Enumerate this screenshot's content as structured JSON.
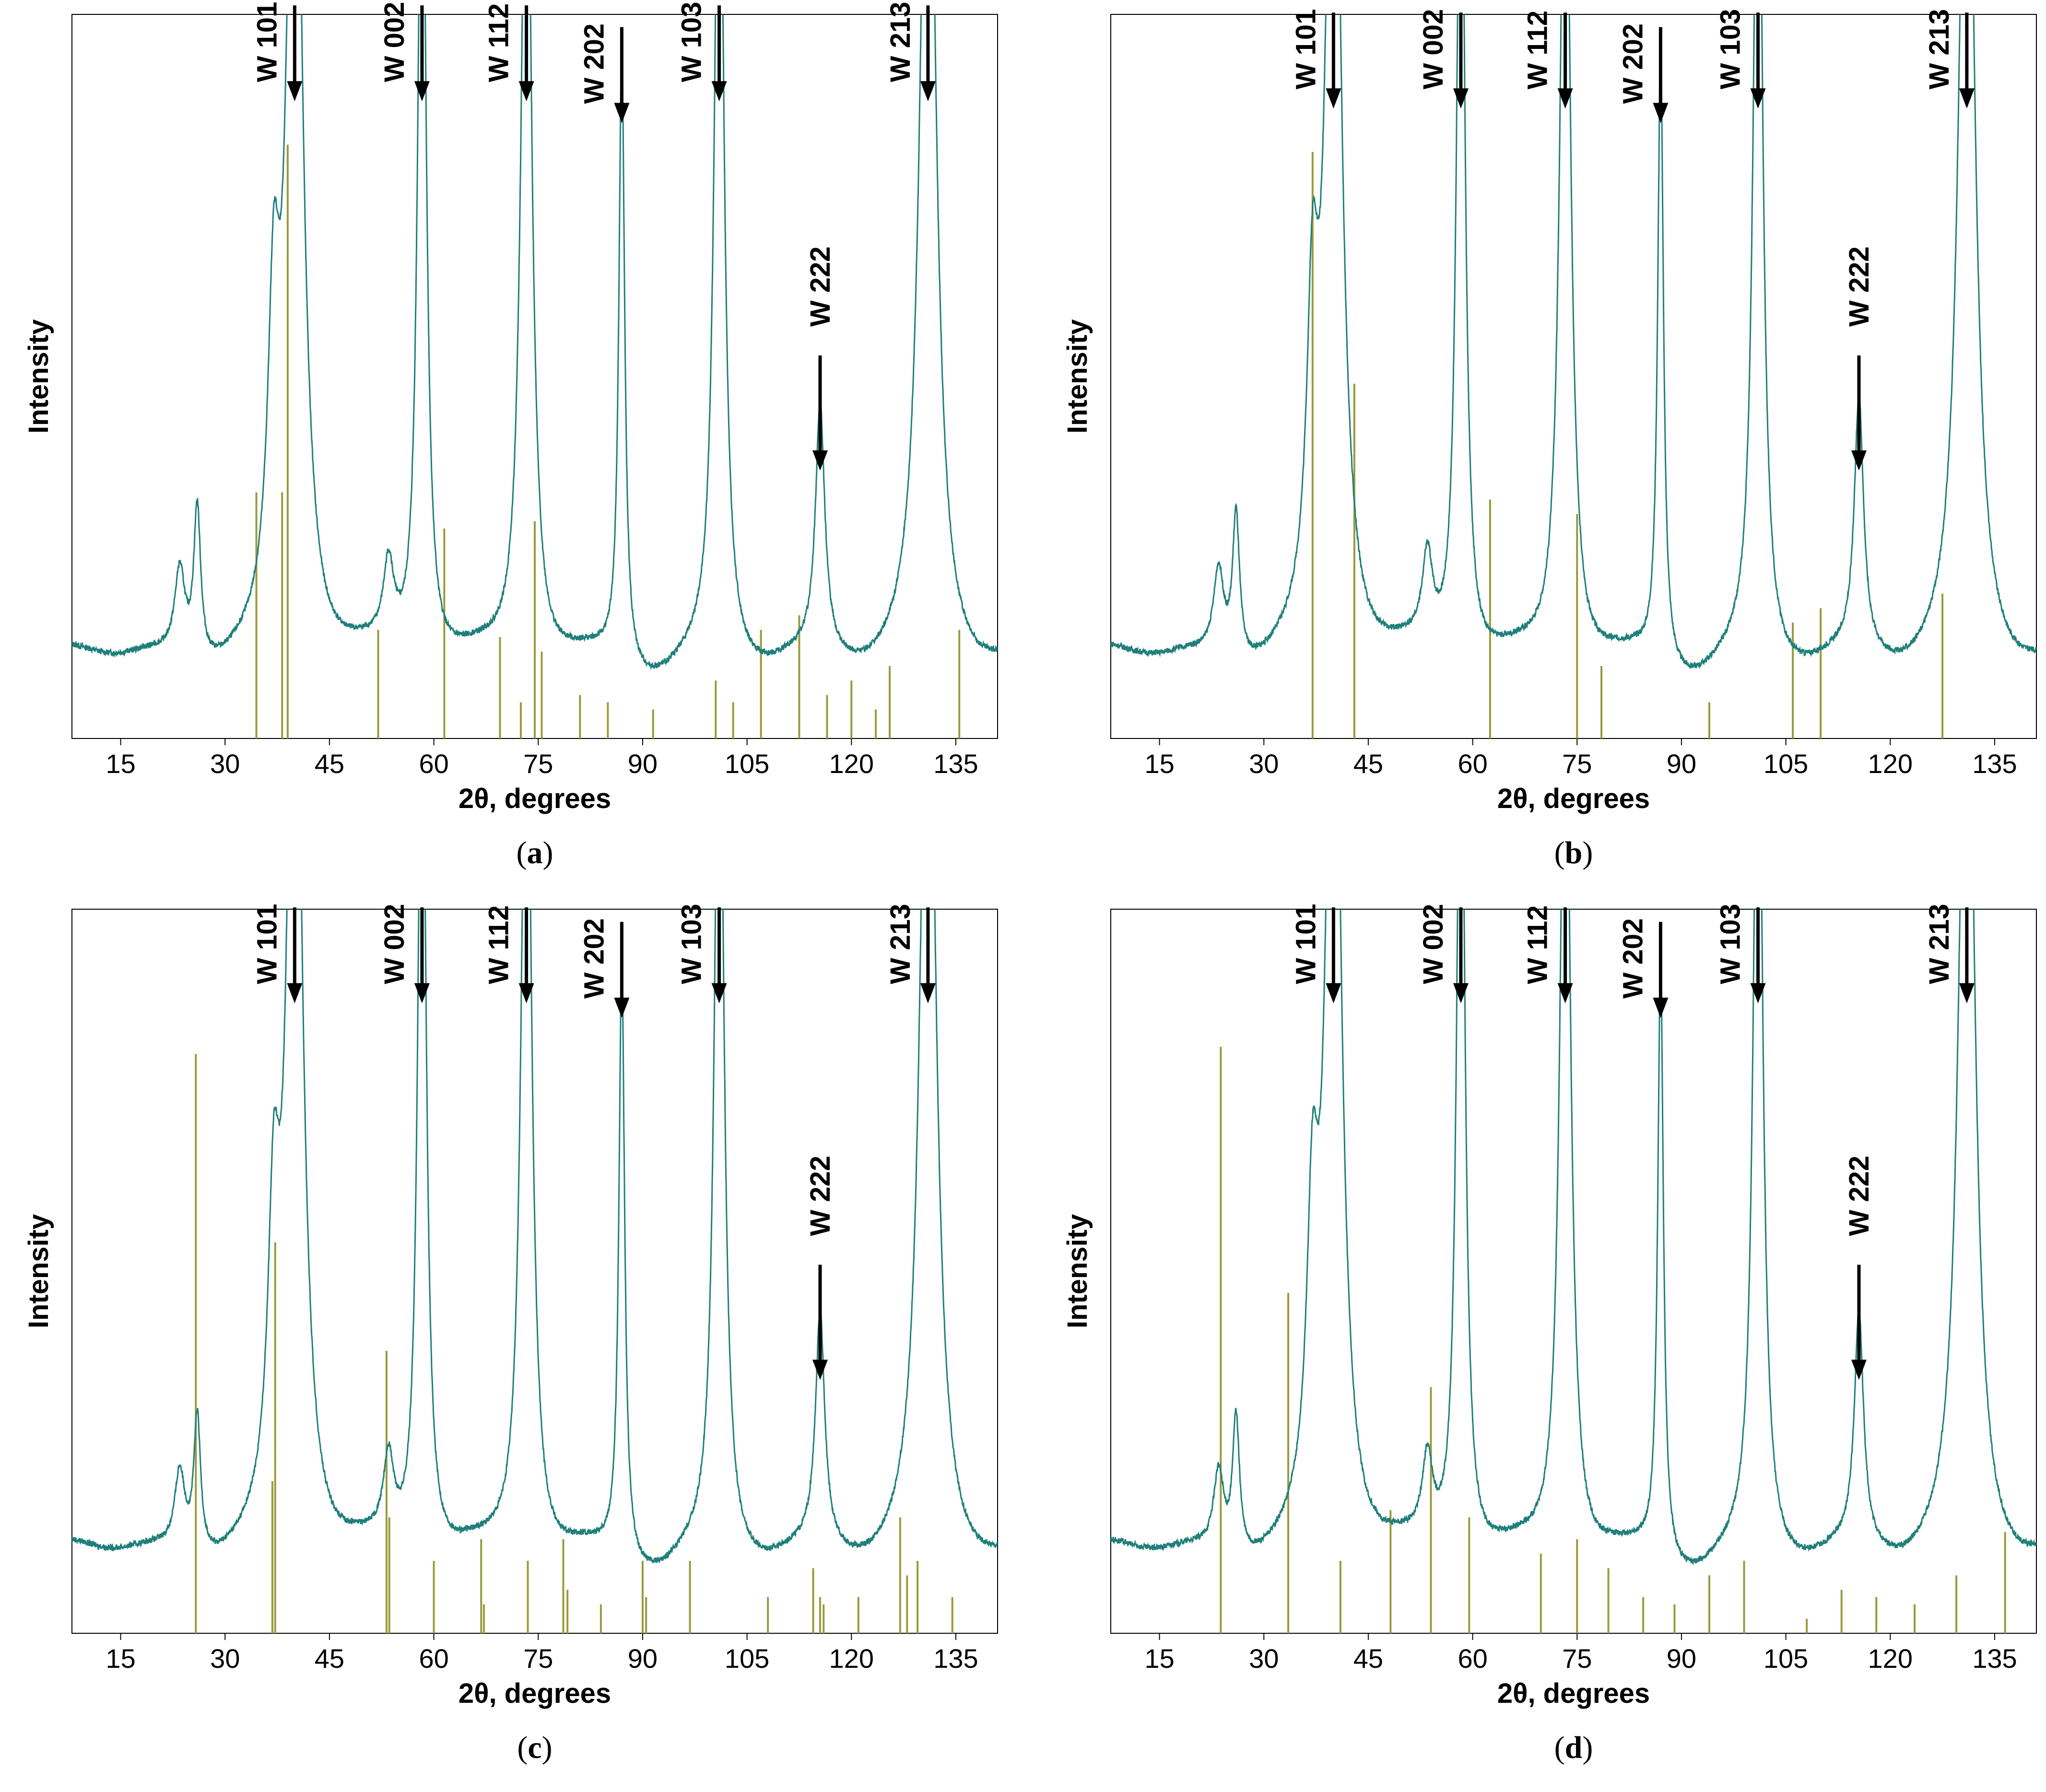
{
  "figure": {
    "axis_label_x": "2θ, degrees",
    "axis_label_y": "Intensity",
    "colors": {
      "pattern": "#1f7f7a",
      "reference": "#9a9a3a",
      "axis": "#000000",
      "arrow": "#000000"
    }
  },
  "chart_data": [
    {
      "panel": "a",
      "caption_letter": "a",
      "type": "line",
      "title": "",
      "xlabel": "2θ, degrees",
      "ylabel": "Intensity",
      "xlim": [
        8,
        141
      ],
      "ylim": [
        0,
        100
      ],
      "grid": false,
      "xticks": [
        15,
        30,
        45,
        60,
        75,
        90,
        105,
        120,
        135
      ],
      "tick_labels": [
        "15",
        "30",
        "45",
        "60",
        "75",
        "90",
        "105",
        "120",
        "135"
      ],
      "peaks": [
        {
          "pos": 23.5,
          "h": 12,
          "w": 0.9
        },
        {
          "pos": 26,
          "h": 21,
          "w": 0.6
        },
        {
          "pos": 37,
          "h": 40,
          "w": 1.0
        },
        {
          "pos": 40,
          "h": 140,
          "w": 1.3
        },
        {
          "pos": 53.5,
          "h": 11,
          "w": 0.9
        },
        {
          "pos": 58.3,
          "h": 130,
          "w": 0.7
        },
        {
          "pos": 73.3,
          "h": 130,
          "w": 0.9
        },
        {
          "pos": 87,
          "h": 85,
          "w": 0.5
        },
        {
          "pos": 101,
          "h": 130,
          "w": 0.8
        },
        {
          "pos": 115.5,
          "h": 34,
          "w": 0.8
        },
        {
          "pos": 131,
          "h": 140,
          "w": 1.3
        }
      ],
      "baseline": 10,
      "reference_lines": [
        [
          34.5,
          34
        ],
        [
          38.2,
          34
        ],
        [
          39,
          82
        ],
        [
          52,
          15
        ],
        [
          61.5,
          29
        ],
        [
          69.5,
          14
        ],
        [
          72.5,
          5
        ],
        [
          74.5,
          30
        ],
        [
          75.5,
          12
        ],
        [
          81,
          6
        ],
        [
          85,
          5
        ],
        [
          91.5,
          4
        ],
        [
          100.5,
          8
        ],
        [
          103,
          5
        ],
        [
          107,
          15
        ],
        [
          112.5,
          17
        ],
        [
          116.5,
          6
        ],
        [
          120,
          8
        ],
        [
          123.5,
          4
        ],
        [
          125.5,
          10
        ],
        [
          135.5,
          15
        ]
      ],
      "annotations": [
        {
          "label": "W 101",
          "pos": 40,
          "arrow_tip": 88,
          "style": "top"
        },
        {
          "label": "W 002",
          "pos": 58.3,
          "arrow_tip": 88,
          "style": "top"
        },
        {
          "label": "W 112",
          "pos": 73.3,
          "arrow_tip": 88,
          "style": "top"
        },
        {
          "label": "W 202",
          "pos": 87,
          "arrow_tip": 85,
          "style": "top"
        },
        {
          "label": "W 103",
          "pos": 101,
          "arrow_tip": 88,
          "style": "top"
        },
        {
          "label": "W 213",
          "pos": 131,
          "arrow_tip": 88,
          "style": "top"
        },
        {
          "label": "W 222",
          "pos": 115.5,
          "arrow_tip": 37,
          "style": "low"
        }
      ]
    },
    {
      "panel": "b",
      "caption_letter": "b",
      "type": "line",
      "title": "",
      "xlabel": "2θ, degrees",
      "ylabel": "Intensity",
      "xlim": [
        8,
        141
      ],
      "ylim": [
        0,
        100
      ],
      "grid": false,
      "xticks": [
        15,
        30,
        45,
        60,
        75,
        90,
        105,
        120,
        135
      ],
      "tick_labels": [
        "15",
        "30",
        "45",
        "60",
        "75",
        "90",
        "105",
        "120",
        "135"
      ],
      "peaks": [
        {
          "pos": 23.5,
          "h": 12,
          "w": 0.9
        },
        {
          "pos": 26,
          "h": 20,
          "w": 0.6
        },
        {
          "pos": 37,
          "h": 40,
          "w": 1.0
        },
        {
          "pos": 40,
          "h": 140,
          "w": 1.3
        },
        {
          "pos": 53.5,
          "h": 12,
          "w": 0.9
        },
        {
          "pos": 58.3,
          "h": 130,
          "w": 0.7
        },
        {
          "pos": 73.3,
          "h": 130,
          "w": 0.9
        },
        {
          "pos": 87,
          "h": 85,
          "w": 0.5
        },
        {
          "pos": 101,
          "h": 130,
          "w": 0.8
        },
        {
          "pos": 115.5,
          "h": 35,
          "w": 0.8
        },
        {
          "pos": 131,
          "h": 140,
          "w": 1.3
        }
      ],
      "baseline": 10,
      "reference_lines": [
        [
          37,
          81
        ],
        [
          43,
          49
        ],
        [
          62.5,
          33
        ],
        [
          75,
          31
        ],
        [
          78.5,
          10
        ],
        [
          94,
          5
        ],
        [
          106,
          16
        ],
        [
          110,
          18
        ],
        [
          127.5,
          20
        ]
      ],
      "annotations": [
        {
          "label": "W 101",
          "pos": 40,
          "arrow_tip": 87,
          "style": "top"
        },
        {
          "label": "W 002",
          "pos": 58.3,
          "arrow_tip": 87,
          "style": "top"
        },
        {
          "label": "W 112",
          "pos": 73.3,
          "arrow_tip": 87,
          "style": "top"
        },
        {
          "label": "W 202",
          "pos": 87,
          "arrow_tip": 85,
          "style": "top"
        },
        {
          "label": "W 103",
          "pos": 101,
          "arrow_tip": 87,
          "style": "top"
        },
        {
          "label": "W 213",
          "pos": 131,
          "arrow_tip": 87,
          "style": "top"
        },
        {
          "label": "W 222",
          "pos": 115.5,
          "arrow_tip": 37,
          "style": "low"
        }
      ]
    },
    {
      "panel": "c",
      "caption_letter": "c",
      "type": "line",
      "title": "",
      "xlabel": "2θ, degrees",
      "ylabel": "Intensity",
      "xlim": [
        8,
        141
      ],
      "ylim": [
        0,
        100
      ],
      "grid": false,
      "xticks": [
        15,
        30,
        45,
        60,
        75,
        90,
        105,
        120,
        135
      ],
      "tick_labels": [
        "15",
        "30",
        "45",
        "60",
        "75",
        "90",
        "105",
        "120",
        "135"
      ],
      "peaks": [
        {
          "pos": 23.5,
          "h": 11,
          "w": 0.9
        },
        {
          "pos": 26,
          "h": 19,
          "w": 0.6
        },
        {
          "pos": 37,
          "h": 38,
          "w": 1.0
        },
        {
          "pos": 40,
          "h": 140,
          "w": 1.3
        },
        {
          "pos": 53.5,
          "h": 11,
          "w": 0.9
        },
        {
          "pos": 58.3,
          "h": 130,
          "w": 0.7
        },
        {
          "pos": 73.3,
          "h": 130,
          "w": 0.9
        },
        {
          "pos": 87,
          "h": 82,
          "w": 0.5
        },
        {
          "pos": 101,
          "h": 130,
          "w": 0.8
        },
        {
          "pos": 115.5,
          "h": 32,
          "w": 0.8
        },
        {
          "pos": 131,
          "h": 140,
          "w": 1.3
        }
      ],
      "baseline": 10,
      "reference_lines": [
        [
          25.8,
          80
        ],
        [
          36.8,
          21
        ],
        [
          37.2,
          54
        ],
        [
          53.2,
          39
        ],
        [
          53.6,
          16
        ],
        [
          60,
          10
        ],
        [
          66.8,
          13
        ],
        [
          67.2,
          4
        ],
        [
          73.5,
          10
        ],
        [
          78.6,
          13
        ],
        [
          79.2,
          6
        ],
        [
          84,
          4
        ],
        [
          90,
          10
        ],
        [
          90.5,
          5
        ],
        [
          96.8,
          10
        ],
        [
          108,
          5
        ],
        [
          114.5,
          9
        ],
        [
          115.5,
          5
        ],
        [
          116,
          4
        ],
        [
          121,
          5
        ],
        [
          127,
          16
        ],
        [
          128,
          8
        ],
        [
          129.5,
          10
        ],
        [
          134.5,
          5
        ]
      ],
      "annotations": [
        {
          "label": "W 101",
          "pos": 40,
          "arrow_tip": 87,
          "style": "top"
        },
        {
          "label": "W 002",
          "pos": 58.3,
          "arrow_tip": 87,
          "style": "top"
        },
        {
          "label": "W 112",
          "pos": 73.3,
          "arrow_tip": 87,
          "style": "top"
        },
        {
          "label": "W 202",
          "pos": 87,
          "arrow_tip": 85,
          "style": "top"
        },
        {
          "label": "W 103",
          "pos": 101,
          "arrow_tip": 87,
          "style": "top"
        },
        {
          "label": "W 213",
          "pos": 131,
          "arrow_tip": 87,
          "style": "top"
        },
        {
          "label": "W 222",
          "pos": 115.5,
          "arrow_tip": 35,
          "style": "low"
        }
      ]
    },
    {
      "panel": "d",
      "caption_letter": "d",
      "type": "line",
      "title": "",
      "xlabel": "2θ, degrees",
      "ylabel": "Intensity",
      "xlim": [
        8,
        141
      ],
      "ylim": [
        0,
        100
      ],
      "grid": false,
      "xticks": [
        15,
        30,
        45,
        60,
        75,
        90,
        105,
        120,
        135
      ],
      "tick_labels": [
        "15",
        "30",
        "45",
        "60",
        "75",
        "90",
        "105",
        "120",
        "135"
      ],
      "peaks": [
        {
          "pos": 23.5,
          "h": 11,
          "w": 0.9
        },
        {
          "pos": 26,
          "h": 19,
          "w": 0.6
        },
        {
          "pos": 37,
          "h": 38,
          "w": 1.0
        },
        {
          "pos": 40,
          "h": 140,
          "w": 1.3
        },
        {
          "pos": 53.5,
          "h": 11,
          "w": 0.9
        },
        {
          "pos": 58.3,
          "h": 130,
          "w": 0.7
        },
        {
          "pos": 73.3,
          "h": 130,
          "w": 0.9
        },
        {
          "pos": 87,
          "h": 82,
          "w": 0.5
        },
        {
          "pos": 101,
          "h": 130,
          "w": 0.8
        },
        {
          "pos": 115.5,
          "h": 32,
          "w": 0.8
        },
        {
          "pos": 131,
          "h": 140,
          "w": 1.3
        }
      ],
      "baseline": 10,
      "reference_lines": [
        [
          23.8,
          81
        ],
        [
          33.5,
          47
        ],
        [
          41,
          10
        ],
        [
          48.2,
          17
        ],
        [
          54,
          34
        ],
        [
          59.5,
          16
        ],
        [
          69.8,
          11
        ],
        [
          75,
          13
        ],
        [
          79.5,
          9
        ],
        [
          84.5,
          5
        ],
        [
          89,
          4
        ],
        [
          94,
          8
        ],
        [
          99,
          10
        ],
        [
          108,
          2
        ],
        [
          113,
          6
        ],
        [
          118,
          5
        ],
        [
          123.5,
          4
        ],
        [
          129.5,
          8
        ],
        [
          136.5,
          14
        ]
      ],
      "annotations": [
        {
          "label": "W 101",
          "pos": 40,
          "arrow_tip": 87,
          "style": "top"
        },
        {
          "label": "W 002",
          "pos": 58.3,
          "arrow_tip": 87,
          "style": "top"
        },
        {
          "label": "W 112",
          "pos": 73.3,
          "arrow_tip": 87,
          "style": "top"
        },
        {
          "label": "W 202",
          "pos": 87,
          "arrow_tip": 85,
          "style": "top"
        },
        {
          "label": "W 103",
          "pos": 101,
          "arrow_tip": 87,
          "style": "top"
        },
        {
          "label": "W 213",
          "pos": 131,
          "arrow_tip": 87,
          "style": "top"
        },
        {
          "label": "W 222",
          "pos": 115.5,
          "arrow_tip": 35,
          "style": "low"
        }
      ]
    }
  ]
}
